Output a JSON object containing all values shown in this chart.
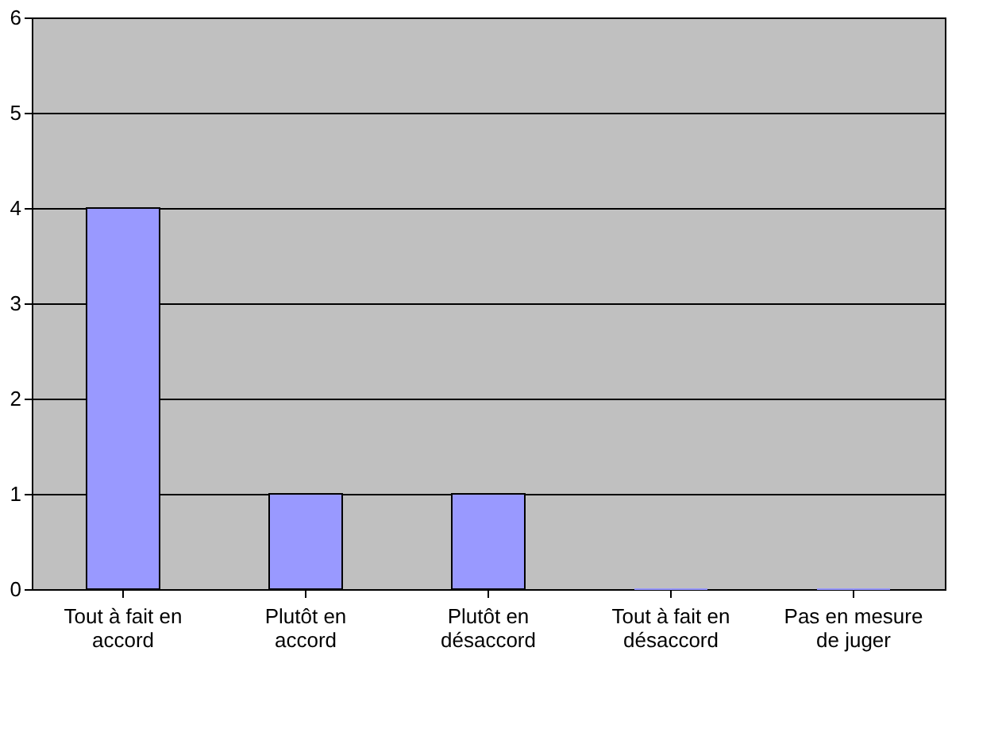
{
  "chart_data": {
    "type": "bar",
    "categories": [
      "Tout à fait en accord",
      "Plutôt en accord",
      "Plutôt en désaccord",
      "Tout à fait en désaccord",
      "Pas en mesure de juger"
    ],
    "values": [
      4,
      1,
      1,
      0,
      0
    ],
    "color": "#9999ff",
    "ylim": [
      0,
      6
    ],
    "yticks": [
      0,
      1,
      2,
      3,
      4,
      5,
      6
    ],
    "grid": "y"
  }
}
